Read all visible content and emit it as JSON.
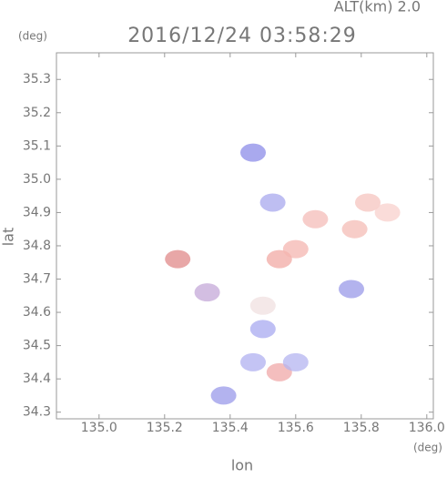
{
  "chart_data": {
    "type": "scatter",
    "title": "2016/12/24 03:58:29",
    "subtitle": "ALT(km)  2.0",
    "x_label": "lon",
    "y_label": "lat",
    "x_unit": "(deg)",
    "y_unit": "(deg)",
    "x": [
      135.82,
      135.88,
      135.78,
      135.55,
      135.6,
      135.53,
      135.5,
      135.5,
      135.47,
      135.55,
      135.6,
      135.38,
      135.47,
      135.24,
      135.77,
      135.66,
      135.33
    ],
    "values": [
      34.93,
      34.9,
      34.85,
      34.76,
      34.79,
      34.93,
      34.62,
      34.55,
      34.45,
      34.42,
      34.45,
      34.35,
      35.08,
      34.76,
      34.67,
      34.88,
      34.66
    ],
    "colors": [
      "#f6c4bf",
      "#f8d0cc",
      "#f4bcb6",
      "#f2aaa4",
      "#f4b6b0",
      "#a8a8ee",
      "#f0e0e0",
      "#a8aaf0",
      "#b0b0f0",
      "#f0a8a8",
      "#b4b4f0",
      "#9a9aea",
      "#8c8ce8",
      "#e08a8a",
      "#9a9ae8",
      "#f4bcb8",
      "#c4a8d8"
    ],
    "xlim": [
      134.87,
      136.02
    ],
    "ylim": [
      34.28,
      35.38
    ],
    "xticks": [
      {
        "value": 135.0,
        "label": "135.0"
      },
      135.2,
      135.4,
      135.6,
      135.8,
      {
        "value": 136.0,
        "label": "136.0"
      }
    ],
    "yticks": [
      34.3,
      34.4,
      34.5,
      34.6,
      34.7,
      34.8,
      34.9,
      {
        "value": 35.0,
        "label": "35.0"
      },
      35.1,
      35.2,
      35.3
    ]
  }
}
